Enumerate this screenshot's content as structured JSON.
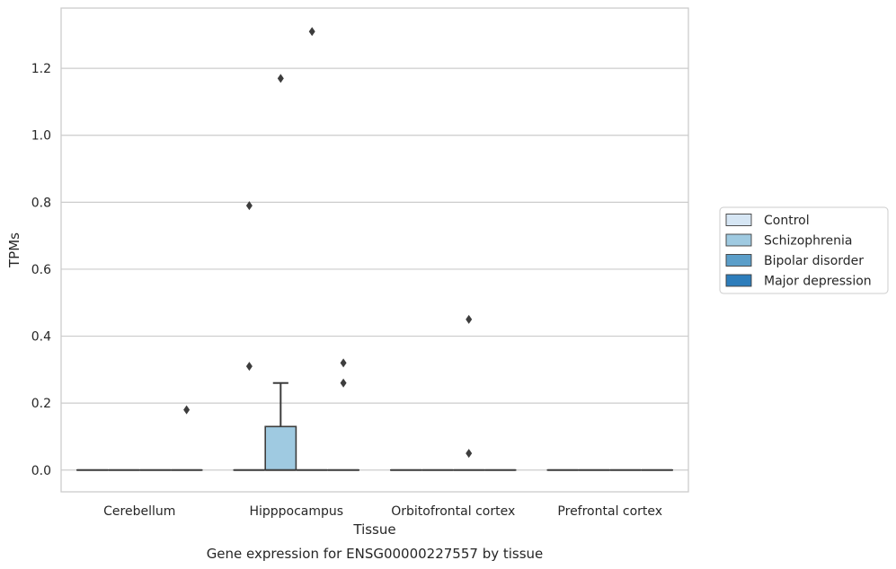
{
  "chart_data": {
    "type": "box",
    "xlabel": "Tissue",
    "ylabel": "TPMs",
    "caption": "Gene expression for ENSG00000227557 by tissue",
    "ylim": [
      -0.065,
      1.38
    ],
    "yticks": [
      "0.0",
      "0.2",
      "0.4",
      "0.6",
      "0.8",
      "1.0",
      "1.2"
    ],
    "grid": true,
    "legend_position": "right",
    "categories": [
      "Cerebellum",
      "Hipppocampus",
      "Orbitofrontal cortex",
      "Prefrontal cortex"
    ],
    "series": [
      {
        "name": "Control",
        "color": "#d6e6f4",
        "boxes": [
          {
            "category": "Cerebellum",
            "q1": 0,
            "median": 0,
            "q3": 0,
            "whisker_low": 0,
            "whisker_high": 0,
            "outliers": []
          },
          {
            "category": "Hipppocampus",
            "q1": 0,
            "median": 0,
            "q3": 0,
            "whisker_low": 0,
            "whisker_high": 0,
            "outliers": [
              0.79,
              0.31
            ]
          },
          {
            "category": "Orbitofrontal cortex",
            "q1": 0,
            "median": 0,
            "q3": 0,
            "whisker_low": 0,
            "whisker_high": 0,
            "outliers": []
          },
          {
            "category": "Prefrontal cortex",
            "q1": 0,
            "median": 0,
            "q3": 0,
            "whisker_low": 0,
            "whisker_high": 0,
            "outliers": []
          }
        ]
      },
      {
        "name": "Schizophrenia",
        "color": "#9fcae1",
        "boxes": [
          {
            "category": "Cerebellum",
            "q1": 0,
            "median": 0,
            "q3": 0,
            "whisker_low": 0,
            "whisker_high": 0,
            "outliers": []
          },
          {
            "category": "Hipppocampus",
            "q1": 0,
            "median": 0,
            "q3": 0.13,
            "whisker_low": 0,
            "whisker_high": 0.26,
            "outliers": [
              1.17
            ]
          },
          {
            "category": "Orbitofrontal cortex",
            "q1": 0,
            "median": 0,
            "q3": 0,
            "whisker_low": 0,
            "whisker_high": 0,
            "outliers": []
          },
          {
            "category": "Prefrontal cortex",
            "q1": 0,
            "median": 0,
            "q3": 0,
            "whisker_low": 0,
            "whisker_high": 0,
            "outliers": []
          }
        ]
      },
      {
        "name": "Bipolar disorder",
        "color": "#5b9ec9",
        "boxes": [
          {
            "category": "Cerebellum",
            "q1": 0,
            "median": 0,
            "q3": 0,
            "whisker_low": 0,
            "whisker_high": 0,
            "outliers": []
          },
          {
            "category": "Hipppocampus",
            "q1": 0,
            "median": 0,
            "q3": 0,
            "whisker_low": 0,
            "whisker_high": 0,
            "outliers": [
              1.31
            ]
          },
          {
            "category": "Orbitofrontal cortex",
            "q1": 0,
            "median": 0,
            "q3": 0,
            "whisker_low": 0,
            "whisker_high": 0,
            "outliers": [
              0.45,
              0.05
            ]
          },
          {
            "category": "Prefrontal cortex",
            "q1": 0,
            "median": 0,
            "q3": 0,
            "whisker_low": 0,
            "whisker_high": 0,
            "outliers": []
          }
        ]
      },
      {
        "name": "Major depression",
        "color": "#2d7dbb",
        "boxes": [
          {
            "category": "Cerebellum",
            "q1": 0,
            "median": 0,
            "q3": 0,
            "whisker_low": 0,
            "whisker_high": 0,
            "outliers": [
              0.18
            ]
          },
          {
            "category": "Hipppocampus",
            "q1": 0,
            "median": 0,
            "q3": 0,
            "whisker_low": 0,
            "whisker_high": 0,
            "outliers": [
              0.32,
              0.26
            ]
          },
          {
            "category": "Orbitofrontal cortex",
            "q1": 0,
            "median": 0,
            "q3": 0,
            "whisker_low": 0,
            "whisker_high": 0,
            "outliers": []
          },
          {
            "category": "Prefrontal cortex",
            "q1": 0,
            "median": 0,
            "q3": 0,
            "whisker_low": 0,
            "whisker_high": 0,
            "outliers": []
          }
        ]
      }
    ]
  }
}
